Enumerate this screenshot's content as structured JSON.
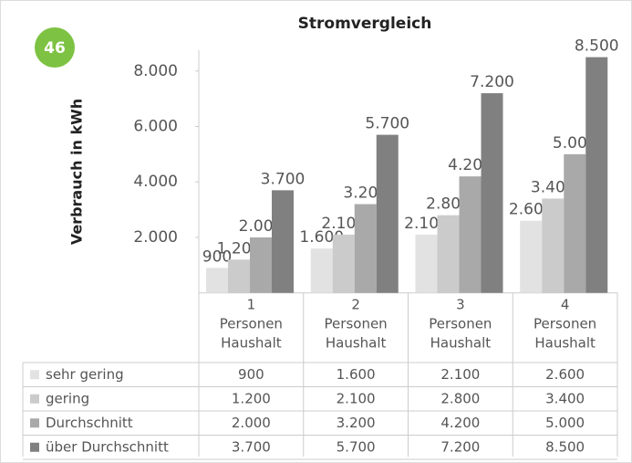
{
  "badge": "46",
  "chart_data": {
    "type": "bar",
    "title": "Stromvergleich",
    "y_label": "Verbrauch in kWh",
    "categories": [
      [
        "1",
        "Personen",
        "Haushalt"
      ],
      [
        "2",
        "Personen",
        "Haushalt"
      ],
      [
        "3",
        "Personen",
        "Haushalt"
      ],
      [
        "4",
        "Personen",
        "Haushalt"
      ]
    ],
    "series": [
      {
        "name": "sehr gering",
        "color": "#e2e2e2",
        "values": [
          900,
          1600,
          2100,
          2600
        ],
        "value_labels": [
          "900",
          "1.600",
          "2.100",
          "2.600"
        ]
      },
      {
        "name": "gering",
        "color": "#cbcbcb",
        "values": [
          1200,
          2100,
          2800,
          3400
        ],
        "value_labels": [
          "1.200",
          "2.100",
          "2.800",
          "3.400"
        ]
      },
      {
        "name": "Durchschnitt",
        "color": "#a9a9a9",
        "values": [
          2000,
          3200,
          4200,
          5000
        ],
        "value_labels": [
          "2.000",
          "3.200",
          "4.200",
          "5.000"
        ]
      },
      {
        "name": "über Durchschnitt",
        "color": "#808080",
        "values": [
          3700,
          5700,
          7200,
          8500
        ],
        "value_labels": [
          "3.700",
          "5.700",
          "7.200",
          "8.500"
        ]
      }
    ],
    "ylim": [
      0,
      8750
    ],
    "yticks": [
      {
        "value": 2000,
        "label": "2.000"
      },
      {
        "value": 4000,
        "label": "4.000"
      },
      {
        "value": 6000,
        "label": "6.000"
      },
      {
        "value": 8000,
        "label": "8.000"
      }
    ],
    "grid": false
  }
}
